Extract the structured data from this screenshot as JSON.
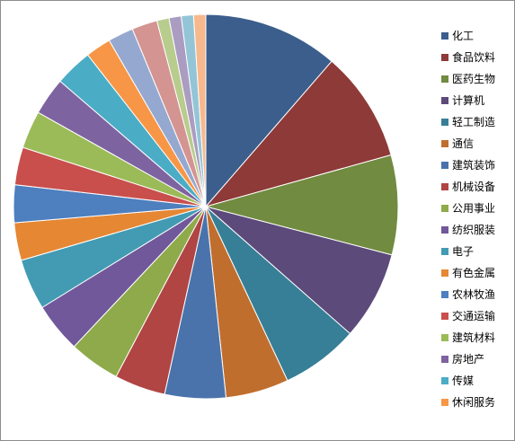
{
  "chart_data": {
    "type": "pie",
    "title": "",
    "slices": [
      {
        "label": "化工",
        "value": 12.2,
        "color": "#3B5E8C"
      },
      {
        "label": "食品饮料",
        "value": 10.0,
        "color": "#8E3A38"
      },
      {
        "label": "医药生物",
        "value": 9.0,
        "color": "#718B40"
      },
      {
        "label": "计算机",
        "value": 8.0,
        "color": "#5C4A7A"
      },
      {
        "label": "轻工制造",
        "value": 7.0,
        "color": "#377F96"
      },
      {
        "label": "通信",
        "value": 5.7,
        "color": "#C06E2E"
      },
      {
        "label": "建筑装饰",
        "value": 5.5,
        "color": "#4A73AC"
      },
      {
        "label": "机械设备",
        "value": 4.6,
        "color": "#B04543"
      },
      {
        "label": "公用事业",
        "value": 4.6,
        "color": "#8EAA4A"
      },
      {
        "label": "纺织服装",
        "value": 4.5,
        "color": "#71589A"
      },
      {
        "label": "电子",
        "value": 4.6,
        "color": "#439BB3"
      },
      {
        "label": "有色金属",
        "value": 3.4,
        "color": "#E58733"
      },
      {
        "label": "农林牧渔",
        "value": 3.4,
        "color": "#4E7FBF"
      },
      {
        "label": "交通运输",
        "value": 3.4,
        "color": "#C94F4C"
      },
      {
        "label": "建筑材料",
        "value": 3.4,
        "color": "#9BBB58"
      },
      {
        "label": "房地产",
        "value": 3.4,
        "color": "#7E63A1"
      },
      {
        "label": "传媒",
        "value": 3.4,
        "color": "#4BACC6"
      },
      {
        "label": "休闲服务",
        "value": 2.3,
        "color": "#F79646"
      },
      {
        "label": "",
        "value": 2.3,
        "color": "#95A8D0"
      },
      {
        "label": "",
        "value": 2.3,
        "color": "#D49492"
      },
      {
        "label": "",
        "value": 1.1,
        "color": "#B8CC8E"
      },
      {
        "label": "",
        "value": 1.1,
        "color": "#AB9CC1"
      },
      {
        "label": "",
        "value": 1.1,
        "color": "#93C5D7"
      },
      {
        "label": "",
        "value": 1.1,
        "color": "#F8B88D"
      }
    ],
    "legend": {
      "placement": "right"
    }
  }
}
